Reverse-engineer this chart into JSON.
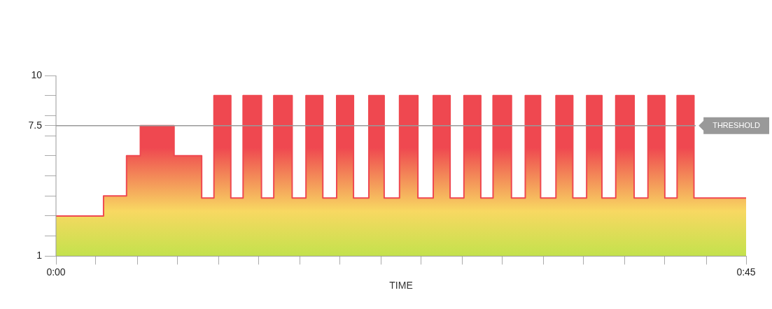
{
  "chart_data": {
    "type": "area",
    "xlabel": "TIME",
    "x": [
      0,
      3.1,
      3.1,
      4.6,
      4.6,
      5.5,
      5.5,
      7.7,
      7.7,
      9.5,
      9.5,
      10.3,
      10.3,
      11.4,
      11.4,
      12.2,
      12.2,
      13.4,
      13.4,
      14.2,
      14.2,
      15.4,
      15.4,
      16.3,
      16.3,
      17.4,
      17.4,
      18.3,
      18.3,
      19.4,
      19.4,
      20.4,
      20.4,
      21.4,
      21.4,
      22.4,
      22.4,
      23.6,
      23.6,
      24.6,
      24.6,
      25.7,
      25.7,
      26.6,
      26.6,
      27.7,
      27.7,
      28.5,
      28.5,
      29.7,
      29.7,
      30.6,
      30.6,
      31.6,
      31.6,
      32.6,
      32.6,
      33.7,
      33.7,
      34.6,
      34.6,
      35.6,
      35.6,
      36.5,
      36.5,
      37.7,
      37.7,
      38.6,
      38.6,
      39.7,
      39.7,
      40.5,
      40.5,
      41.6,
      41.6,
      45
    ],
    "series": [
      {
        "color": "#ef4850",
        "values": [
          3,
          3,
          4,
          4,
          6,
          6,
          7.5,
          7.5,
          6,
          6,
          3.9,
          3.9,
          9,
          9,
          3.9,
          3.9,
          9,
          9,
          3.9,
          3.9,
          9,
          9,
          3.9,
          3.9,
          9,
          9,
          3.9,
          3.9,
          9,
          9,
          3.9,
          3.9,
          9,
          9,
          3.9,
          3.9,
          9,
          9,
          3.9,
          3.9,
          9,
          9,
          3.9,
          3.9,
          9,
          9,
          3.9,
          3.9,
          9,
          9,
          3.9,
          3.9,
          9,
          9,
          3.9,
          3.9,
          9,
          9,
          3.9,
          3.9,
          9,
          9,
          3.9,
          3.9,
          9,
          9,
          3.9,
          3.9,
          9,
          9,
          3.9,
          3.9,
          9,
          9,
          3.9,
          3.9
        ]
      }
    ],
    "xlim": [
      0,
      45
    ],
    "xticks": [
      {
        "value": 0,
        "label": "0:00"
      },
      {
        "value": 2.6,
        "label": null
      },
      {
        "value": 5.3,
        "label": null
      },
      {
        "value": 7.9,
        "label": null
      },
      {
        "value": 10.6,
        "label": null
      },
      {
        "value": 13.2,
        "label": null
      },
      {
        "value": 15.9,
        "label": null
      },
      {
        "value": 18.5,
        "label": null
      },
      {
        "value": 21.2,
        "label": null
      },
      {
        "value": 23.8,
        "label": null
      },
      {
        "value": 26.5,
        "label": null
      },
      {
        "value": 29.1,
        "label": null
      },
      {
        "value": 31.8,
        "label": null
      },
      {
        "value": 34.4,
        "label": null
      },
      {
        "value": 37.1,
        "label": null
      },
      {
        "value": 39.7,
        "label": null
      },
      {
        "value": 42.4,
        "label": null
      },
      {
        "value": 45,
        "label": "0:45"
      }
    ],
    "ylim": [
      1,
      10
    ],
    "yticks": [
      1,
      {
        "value": 2,
        "label": null
      },
      {
        "value": 3,
        "label": null
      },
      {
        "value": 4,
        "label": null
      },
      {
        "value": 5,
        "label": null
      },
      {
        "value": 6,
        "label": null
      },
      {
        "value": 7,
        "label": null
      },
      7.5,
      {
        "value": 8,
        "label": null
      },
      {
        "value": 9,
        "label": null
      },
      10
    ],
    "ref_lines": [
      {
        "axis": "y",
        "value": 7.5,
        "label": "THRESHOLD",
        "color": "#999999"
      }
    ],
    "grid": false,
    "legend": false,
    "marker": "none"
  }
}
